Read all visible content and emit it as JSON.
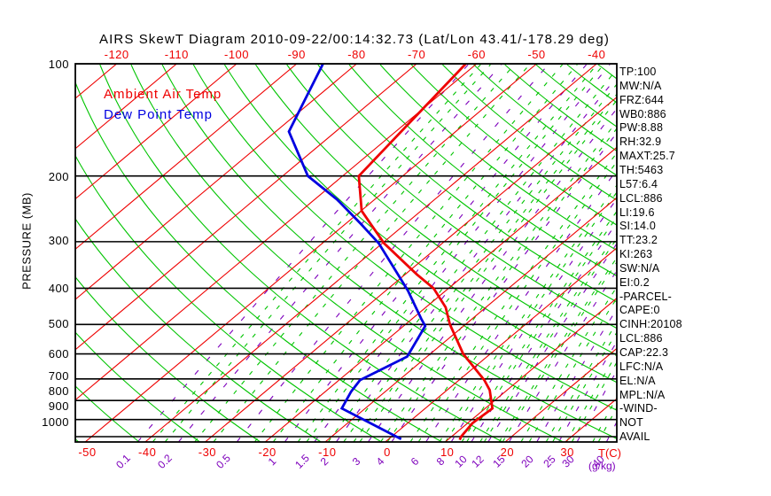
{
  "title": "AIRS SkewT Diagram 2010-09-22/00:14:32.73 (Lat/Lon 43.41/-178.29 deg)",
  "legend": {
    "ambient_label": "Ambient Air Temp",
    "dewpoint_label": "Dew Point Temp"
  },
  "axes": {
    "pressure_axis_label": "PRESSURE (MB)",
    "pressure_ticks": [
      100,
      200,
      300,
      400,
      500,
      600,
      700,
      800,
      900,
      1000
    ],
    "top_temp_ticks": [
      -120,
      -110,
      -100,
      -90,
      -80,
      -70,
      -60,
      -50,
      -40
    ],
    "bottom_temp_ticks": [
      -50,
      -40,
      -30,
      -20,
      -10,
      0,
      10,
      20,
      30
    ],
    "temp_unit_label": "T(C)",
    "mixing_unit_label": "(g/kg)",
    "mixing_ratio_ticks": [
      "0.1",
      "0.2",
      "0.5",
      "1",
      "1.5",
      "2",
      "3",
      "4",
      "6",
      "8",
      "10",
      "12",
      "15",
      "20",
      "25",
      "30",
      "40"
    ]
  },
  "panel": {
    "items": [
      "TP:100",
      "MW:N/A",
      "FRZ:644",
      "WB0:886",
      "PW:8.88",
      "RH:32.9",
      "MAXT:25.7",
      "TH:5463",
      "L57:6.4",
      "LCL:886",
      "LI:19.6",
      "SI:14.0",
      "TT:23.2",
      "KI:263",
      "SW:N/A",
      "EI:0.2",
      "-PARCEL-",
      "CAPE:0",
      "CINH:20108",
      "LCL:886",
      "CAP:22.3",
      "LFC:N/A",
      "EL:N/A",
      "MPL:N/A",
      "-WIND-",
      "NOT",
      "AVAIL"
    ]
  },
  "colors": {
    "isotherm": "#ee0000",
    "adiabat": "#00c400",
    "mixing_ratio": "#7e00bc",
    "ambient": "#ee0000",
    "dewpoint": "#0000e0",
    "grid": "#000000",
    "background": "#ffffff"
  },
  "chart_data": {
    "type": "line",
    "subtype": "skewt_log_p",
    "pressure_range_mb": [
      100,
      1022
    ],
    "pressure_lines_mb": [
      100,
      200,
      300,
      400,
      500,
      600,
      700,
      800,
      900,
      1000
    ],
    "isotherms_c": {
      "min": -130,
      "max": 30,
      "step": 10
    },
    "dry_adiabats_k": {
      "min": 220,
      "max": 460,
      "step": 10
    },
    "mixing_ratio_lines_gkg": [
      0.1,
      0.2,
      0.5,
      1,
      1.5,
      2,
      3,
      4,
      6,
      8,
      10,
      12,
      15,
      20,
      25,
      30,
      40
    ],
    "minor_moisture_lines_gkg": [
      0.13,
      0.16,
      0.26,
      0.35,
      0.65,
      0.85,
      1.2,
      1.35,
      1.8,
      2.2,
      2.5,
      2.7,
      3.5,
      3.8,
      5,
      5.5,
      7,
      7.5,
      9,
      9.5,
      11,
      11.5,
      13.5,
      14,
      17,
      18.5,
      22,
      23.5,
      27,
      28.5,
      35,
      37,
      45,
      48
    ],
    "series": [
      {
        "name": "Ambient Air Temp",
        "color": "#ee0000",
        "points_p_mb_t_c": [
          [
            100,
            -61.8
          ],
          [
            200,
            -57.3
          ],
          [
            248,
            -49.9
          ],
          [
            303,
            -39.7
          ],
          [
            367,
            -28.1
          ],
          [
            400,
            -22.5
          ],
          [
            450,
            -16.7
          ],
          [
            500,
            -12.6
          ],
          [
            600,
            -4.5
          ],
          [
            705,
            4.2
          ],
          [
            750,
            7.1
          ],
          [
            840,
            11.2
          ],
          [
            920,
            10.8
          ],
          [
            1000,
            11.6
          ],
          [
            1020,
            12.0
          ]
        ]
      },
      {
        "name": "Dew Point Temp",
        "color": "#0000e0",
        "points_p_mb_t_c": [
          [
            100,
            -85.6
          ],
          [
            152,
            -77.8
          ],
          [
            200,
            -65.8
          ],
          [
            231,
            -56.3
          ],
          [
            269,
            -47.4
          ],
          [
            303,
            -40.6
          ],
          [
            406,
            -26.3
          ],
          [
            483,
            -18.5
          ],
          [
            505,
            -16.4
          ],
          [
            610,
            -13.3
          ],
          [
            705,
            -16.5
          ],
          [
            757,
            -15.7
          ],
          [
            840,
            -13.9
          ],
          [
            1015,
            2.1
          ]
        ]
      }
    ]
  }
}
